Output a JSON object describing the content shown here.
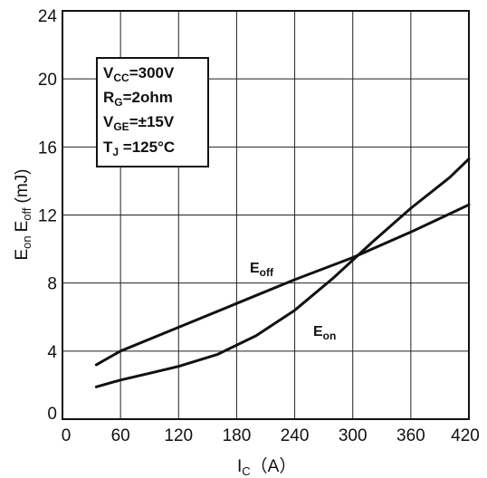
{
  "chart_data": {
    "type": "line",
    "x_ticks": [
      "0",
      "60",
      "120",
      "180",
      "240",
      "300",
      "360",
      "420"
    ],
    "y_ticks": [
      "0",
      "4",
      "8",
      "12",
      "16",
      "20",
      "24"
    ],
    "xlim": [
      0,
      420
    ],
    "ylim": [
      0,
      24
    ],
    "grid": true,
    "xlabel": {
      "main": "I",
      "sub": "C",
      "unit": "（A）"
    },
    "ylabel": {
      "e1": "E",
      "s1": "on",
      "e2": "E",
      "s2": "off",
      "unit": "(mJ)"
    },
    "series": [
      {
        "name": "Eon",
        "label_main": "E",
        "label_sub": "on",
        "x": [
          35,
          60,
          90,
          120,
          160,
          200,
          240,
          280,
          320,
          360,
          400,
          420
        ],
        "y": [
          1.9,
          2.3,
          2.7,
          3.1,
          3.8,
          4.9,
          6.4,
          8.3,
          10.4,
          12.4,
          14.2,
          15.3
        ]
      },
      {
        "name": "Eoff",
        "label_main": "E",
        "label_sub": "off",
        "x": [
          35,
          60,
          120,
          180,
          240,
          300,
          360,
          420
        ],
        "y": [
          3.2,
          4.0,
          5.4,
          6.8,
          8.2,
          9.5,
          11.0,
          12.6
        ]
      }
    ],
    "conditions": [
      {
        "main": "V",
        "sub": "CC",
        "value": "=300V"
      },
      {
        "main": "R",
        "sub": "G",
        "value": "=2ohm"
      },
      {
        "main": "V",
        "sub": "GE",
        "value": "=±15V"
      },
      {
        "main": "T",
        "sub": "J",
        "value": " =125°C"
      }
    ]
  }
}
